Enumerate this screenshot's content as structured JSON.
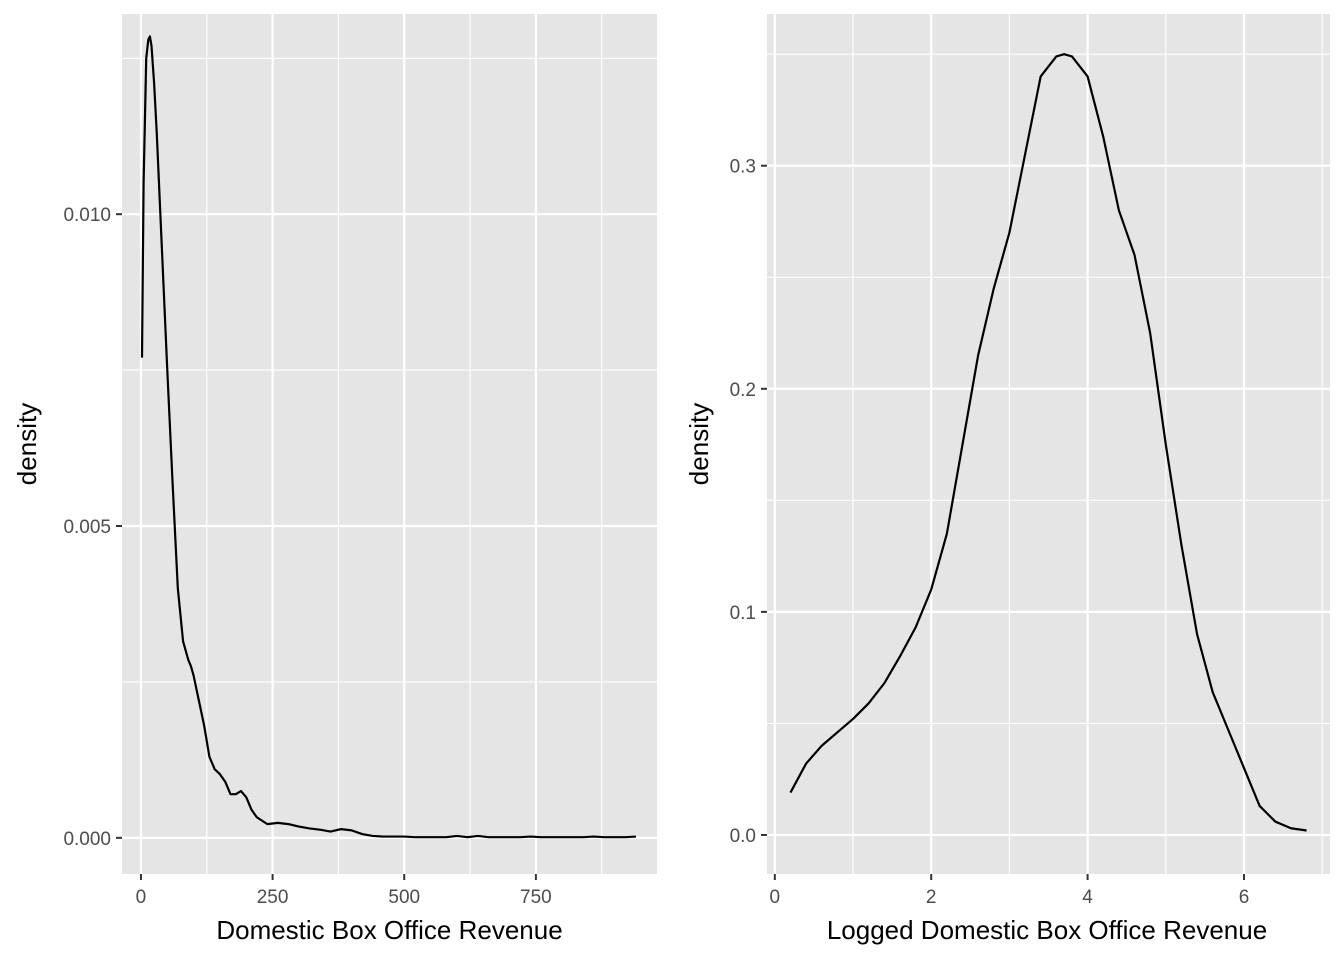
{
  "chart_data": [
    {
      "type": "line",
      "xlabel": "Domestic Box Office Revenue",
      "ylabel": "density",
      "xlim": [
        -36,
        980
      ],
      "ylim": [
        -0.00058,
        0.01321
      ],
      "x_ticks": [
        0,
        250,
        500,
        750
      ],
      "x_tick_labels": [
        "0",
        "250",
        "500",
        "750"
      ],
      "y_ticks": [
        0.0,
        0.005,
        0.01
      ],
      "y_tick_labels": [
        "0.000",
        "0.005",
        "0.010"
      ],
      "grid": true,
      "legend": "none",
      "series": [
        {
          "x": [
            2,
            5,
            10,
            14,
            17,
            20,
            25,
            30,
            40,
            50,
            60,
            70,
            80,
            90,
            95,
            100,
            110,
            120,
            130,
            140,
            150,
            160,
            170,
            180,
            190,
            200,
            210,
            220,
            240,
            260,
            280,
            300,
            320,
            340,
            360,
            380,
            400,
            420,
            440,
            460,
            480,
            500,
            520,
            540,
            560,
            580,
            600,
            620,
            640,
            660,
            680,
            700,
            720,
            740,
            760,
            780,
            800,
            820,
            840,
            860,
            880,
            900,
            920,
            940
          ],
          "y": [
            0.0077,
            0.0105,
            0.0125,
            0.0128,
            0.01285,
            0.0127,
            0.0121,
            0.0113,
            0.0094,
            0.0075,
            0.0057,
            0.004,
            0.00315,
            0.00285,
            0.00275,
            0.0026,
            0.0022,
            0.0018,
            0.0013,
            0.0011,
            0.00102,
            0.0009,
            0.0007,
            0.0007,
            0.00075,
            0.00065,
            0.00045,
            0.00033,
            0.00022,
            0.00024,
            0.00022,
            0.00018,
            0.00015,
            0.00013,
            0.0001,
            0.00014,
            0.00012,
            6e-05,
            3e-05,
            2e-05,
            2e-05,
            2e-05,
            1e-05,
            1e-05,
            1e-05,
            1e-05,
            3e-05,
            1e-05,
            3e-05,
            1e-05,
            1e-05,
            1e-05,
            1e-05,
            2e-05,
            1e-05,
            1e-05,
            1e-05,
            1e-05,
            1e-05,
            2e-05,
            1e-05,
            1e-05,
            1e-05,
            2e-05
          ]
        }
      ]
    },
    {
      "type": "line",
      "xlabel": "Logged Domestic Box Office Revenue",
      "ylabel": "density",
      "xlim": [
        -0.1,
        7.1
      ],
      "ylim": [
        -0.0175,
        0.368
      ],
      "x_ticks": [
        0,
        2,
        4,
        6
      ],
      "x_tick_labels": [
        "0",
        "2",
        "4",
        "6"
      ],
      "y_ticks": [
        0.0,
        0.1,
        0.2,
        0.3
      ],
      "y_tick_labels": [
        "0.0",
        "0.1",
        "0.2",
        "0.3"
      ],
      "grid": true,
      "legend": "none",
      "series": [
        {
          "x": [
            0.2,
            0.4,
            0.6,
            0.8,
            1.0,
            1.2,
            1.4,
            1.6,
            1.8,
            2.0,
            2.2,
            2.4,
            2.6,
            2.8,
            3.0,
            3.2,
            3.4,
            3.6,
            3.7,
            3.8,
            4.0,
            4.2,
            4.4,
            4.6,
            4.8,
            5.0,
            5.2,
            5.4,
            5.6,
            5.8,
            6.0,
            6.2,
            6.4,
            6.6,
            6.8
          ],
          "y": [
            0.019,
            0.032,
            0.04,
            0.046,
            0.052,
            0.059,
            0.068,
            0.08,
            0.093,
            0.11,
            0.135,
            0.175,
            0.215,
            0.245,
            0.27,
            0.305,
            0.34,
            0.349,
            0.35,
            0.349,
            0.34,
            0.313,
            0.28,
            0.26,
            0.225,
            0.175,
            0.13,
            0.09,
            0.064,
            0.047,
            0.03,
            0.013,
            0.006,
            0.003,
            0.002
          ]
        }
      ]
    }
  ]
}
